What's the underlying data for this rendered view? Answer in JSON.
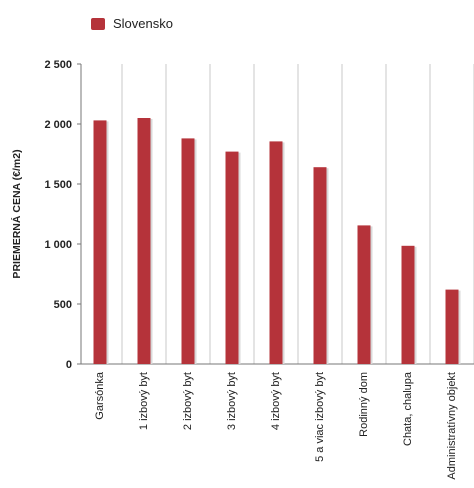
{
  "chart_data": {
    "type": "bar",
    "title": "",
    "xlabel": "",
    "ylabel": "PRIEMERNÁ CENA (€/m2)",
    "ylim": [
      0,
      2500
    ],
    "yticks": [
      0,
      500,
      1000,
      1500,
      2000,
      2500
    ],
    "ytick_labels": [
      "0",
      "500",
      "1 000",
      "1 500",
      "2 000",
      "2 500"
    ],
    "grid": "vertical lines between categories",
    "legend_position": "top-left",
    "categories": [
      "Garsónka",
      "1 izbový byt",
      "2 izbový byt",
      "3 izbový byt",
      "4 izbový byt",
      "5 a viac izbový byt",
      "Rodinný dom",
      "Chata, chalupa",
      "Administratívny objekt"
    ],
    "series": [
      {
        "name": "Slovensko",
        "color": "#b5333a",
        "values": [
          2030,
          2050,
          1880,
          1770,
          1855,
          1640,
          1155,
          985,
          620
        ]
      }
    ]
  }
}
